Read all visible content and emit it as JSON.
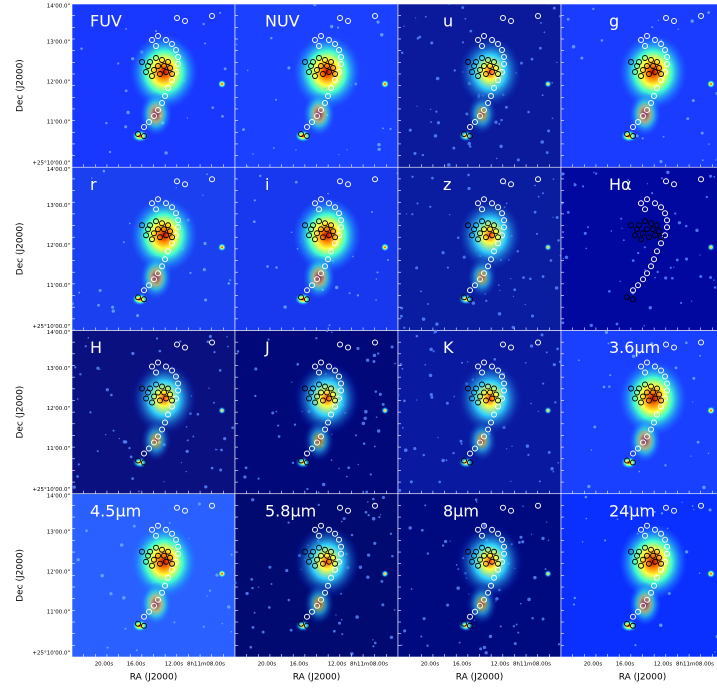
{
  "panels": [
    {
      "label": "FUV"
    },
    {
      "label": "NUV"
    },
    {
      "label": "u"
    },
    {
      "label": "g"
    },
    {
      "label": "r"
    },
    {
      "label": "i"
    },
    {
      "label": "z"
    },
    {
      "label": "Hα"
    },
    {
      "label": "H"
    },
    {
      "label": "J"
    },
    {
      "label": "K"
    },
    {
      "label": "3.6μm"
    },
    {
      "label": "4.5μm"
    },
    {
      "label": "5.8μm"
    },
    {
      "label": "8μm"
    },
    {
      "label": "24μm"
    }
  ],
  "y_axis_label": "Dec (J2000)",
  "x_axis_label": "RA (J2000)",
  "y_tick_labels": [
    "14'00.0\"",
    "13'00.0\"",
    "12'00.0\"",
    "11'00.0\"",
    "+25°10'00.0\""
  ],
  "x_tick_labels": [
    "20.00s",
    "16.00s",
    "12.00s",
    "8h11m08.00s"
  ]
}
